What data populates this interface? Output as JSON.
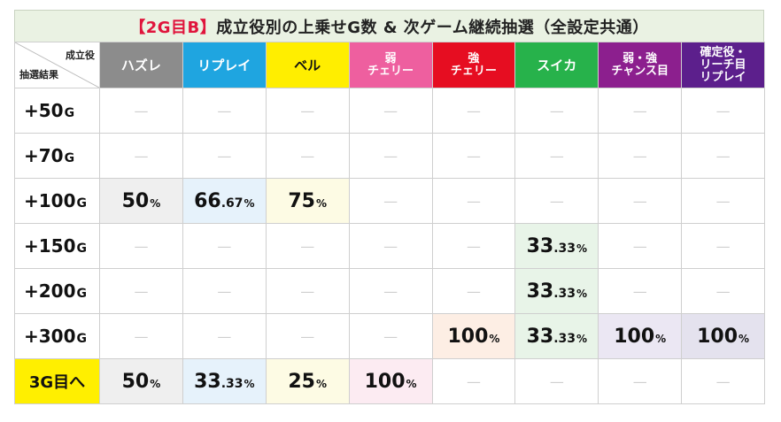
{
  "title": {
    "tag": "【2G目B】",
    "text": "成立役別の上乗せG数 & 次ゲーム継続抽選（全設定共通）"
  },
  "corner": {
    "top_label": "成立役",
    "bottom_label": "抽選結果"
  },
  "columns": [
    {
      "label": "ハズレ",
      "bg": "#8c8c8c",
      "text_color": "#ffffff"
    },
    {
      "label": "リプレイ",
      "bg": "#1fa5e0",
      "text_color": "#ffffff"
    },
    {
      "label": "ベル",
      "bg": "#ffee00",
      "text_color": "#111111"
    },
    {
      "label": "弱\nチェリー",
      "bg": "#ee5f9f",
      "text_color": "#ffffff"
    },
    {
      "label": "強\nチェリー",
      "bg": "#e60d21",
      "text_color": "#ffffff"
    },
    {
      "label": "スイカ",
      "bg": "#27b24b",
      "text_color": "#ffffff"
    },
    {
      "label": "弱・強\nチャンス目",
      "bg": "#8c1f8e",
      "text_color": "#ffffff"
    },
    {
      "label": "確定役・\nリーチ目\nリプレイ",
      "bg": "#5c1f8c",
      "text_color": "#ffffff"
    }
  ],
  "dash": "—",
  "rows": [
    {
      "label": "+50",
      "unit": "G",
      "cells": [
        {
          "t": "dash"
        },
        {
          "t": "dash"
        },
        {
          "t": "dash"
        },
        {
          "t": "dash"
        },
        {
          "t": "dash"
        },
        {
          "t": "dash"
        },
        {
          "t": "dash"
        },
        {
          "t": "dash"
        }
      ]
    },
    {
      "label": "+70",
      "unit": "G",
      "cells": [
        {
          "t": "dash"
        },
        {
          "t": "dash"
        },
        {
          "t": "dash"
        },
        {
          "t": "dash"
        },
        {
          "t": "dash"
        },
        {
          "t": "dash"
        },
        {
          "t": "dash"
        },
        {
          "t": "dash"
        }
      ]
    },
    {
      "label": "+100",
      "unit": "G",
      "cells": [
        {
          "t": "val",
          "int": "50",
          "dec": "",
          "pct": "%",
          "bg": "#efefef"
        },
        {
          "t": "val",
          "int": "66",
          "dec": ".67",
          "pct": "%",
          "bg": "#e6f2fb"
        },
        {
          "t": "val",
          "int": "75",
          "dec": "",
          "pct": "%",
          "bg": "#fdfbe4"
        },
        {
          "t": "dash"
        },
        {
          "t": "dash"
        },
        {
          "t": "dash"
        },
        {
          "t": "dash"
        },
        {
          "t": "dash"
        }
      ]
    },
    {
      "label": "+150",
      "unit": "G",
      "cells": [
        {
          "t": "dash"
        },
        {
          "t": "dash"
        },
        {
          "t": "dash"
        },
        {
          "t": "dash"
        },
        {
          "t": "dash"
        },
        {
          "t": "val",
          "int": "33",
          "dec": ".33",
          "pct": "%",
          "bg": "#e8f4e8"
        },
        {
          "t": "dash"
        },
        {
          "t": "dash"
        }
      ]
    },
    {
      "label": "+200",
      "unit": "G",
      "cells": [
        {
          "t": "dash"
        },
        {
          "t": "dash"
        },
        {
          "t": "dash"
        },
        {
          "t": "dash"
        },
        {
          "t": "dash"
        },
        {
          "t": "val",
          "int": "33",
          "dec": ".33",
          "pct": "%",
          "bg": "#e8f4e8"
        },
        {
          "t": "dash"
        },
        {
          "t": "dash"
        }
      ]
    },
    {
      "label": "+300",
      "unit": "G",
      "cells": [
        {
          "t": "dash"
        },
        {
          "t": "dash"
        },
        {
          "t": "dash"
        },
        {
          "t": "dash"
        },
        {
          "t": "val",
          "int": "100",
          "dec": "",
          "pct": "%",
          "bg": "#fdeee4"
        },
        {
          "t": "val",
          "int": "33",
          "dec": ".33",
          "pct": "%",
          "bg": "#e8f4e8"
        },
        {
          "t": "val",
          "int": "100",
          "dec": "",
          "pct": "%",
          "bg": "#ebe7f3"
        },
        {
          "t": "val",
          "int": "100",
          "dec": "",
          "pct": "%",
          "bg": "#e4e2ee"
        }
      ]
    },
    {
      "label": "3G目へ",
      "unit": "",
      "highlight": true,
      "cells": [
        {
          "t": "val",
          "int": "50",
          "dec": "",
          "pct": "%",
          "bg": "#efefef"
        },
        {
          "t": "val",
          "int": "33",
          "dec": ".33",
          "pct": "%",
          "bg": "#e6f2fb"
        },
        {
          "t": "val",
          "int": "25",
          "dec": "",
          "pct": "%",
          "bg": "#fdfbe4"
        },
        {
          "t": "val",
          "int": "100",
          "dec": "",
          "pct": "%",
          "bg": "#fcebf2"
        },
        {
          "t": "dash"
        },
        {
          "t": "dash"
        },
        {
          "t": "dash"
        },
        {
          "t": "dash"
        }
      ]
    }
  ]
}
